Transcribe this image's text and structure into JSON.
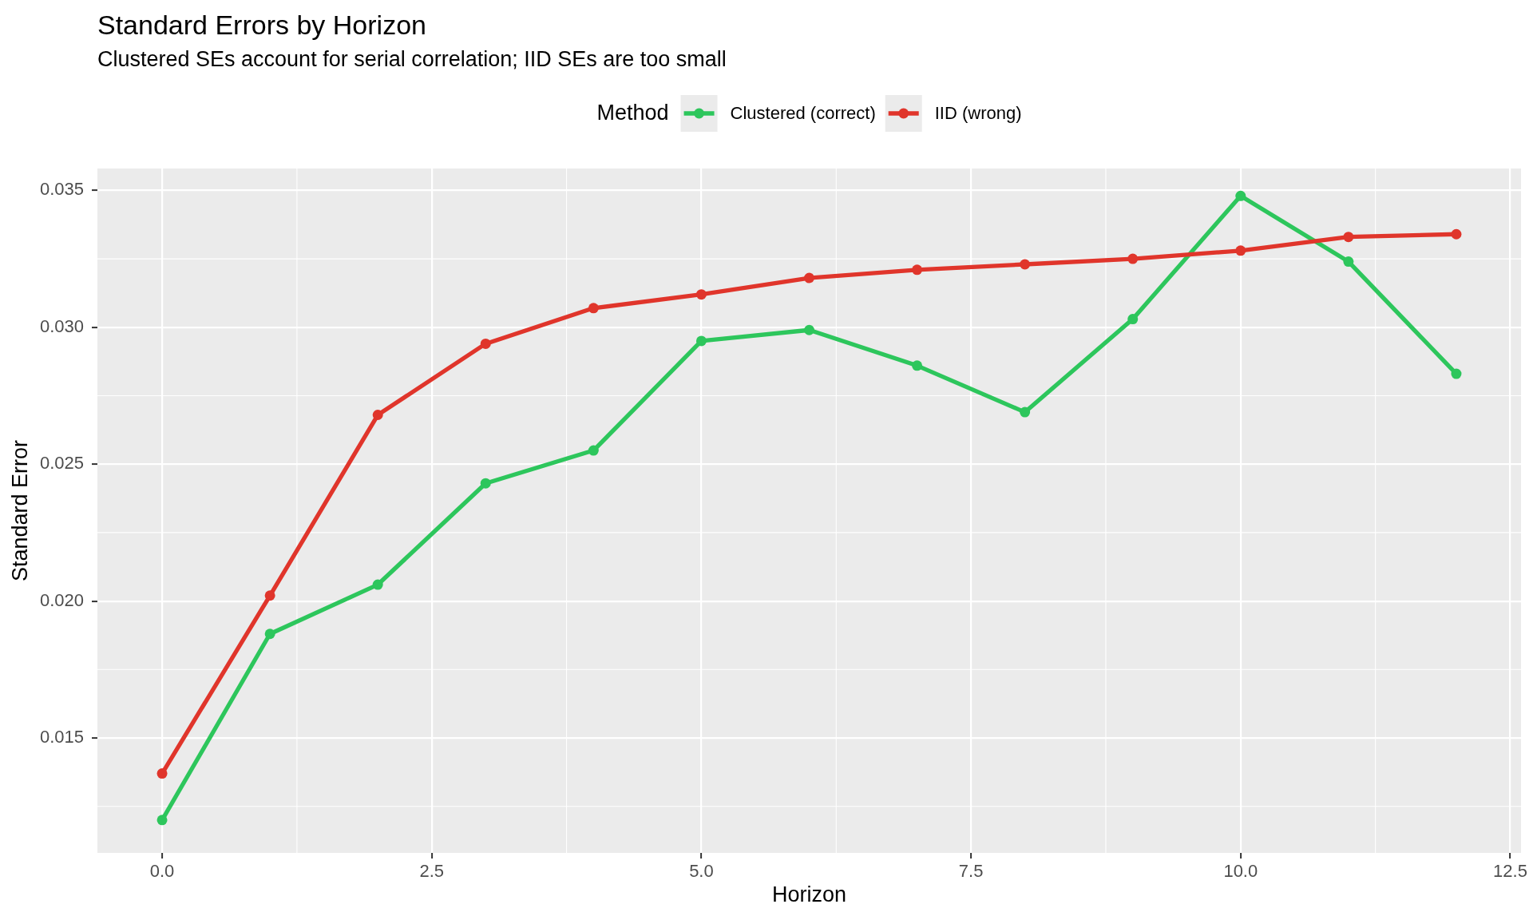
{
  "chart_data": {
    "type": "line",
    "title": "Standard Errors by Horizon",
    "subtitle": "Clustered SEs account for serial correlation; IID SEs are too small",
    "xlabel": "Horizon",
    "ylabel": "Standard Error",
    "legend_title": "Method",
    "x": [
      0,
      1,
      2,
      3,
      4,
      5,
      6,
      7,
      8,
      9,
      10,
      11,
      12
    ],
    "series": [
      {
        "name": "Clustered (correct)",
        "color": "#2dc65c",
        "values": [
          0.012,
          0.0188,
          0.0206,
          0.0243,
          0.0255,
          0.0295,
          0.0299,
          0.0286,
          0.0269,
          0.0303,
          0.0348,
          0.0324,
          0.0283
        ]
      },
      {
        "name": "IID (wrong)",
        "color": "#e0352b",
        "values": [
          0.0137,
          0.0202,
          0.0268,
          0.0294,
          0.0307,
          0.0312,
          0.0318,
          0.0321,
          0.0323,
          0.0325,
          0.0328,
          0.0333,
          0.0334
        ]
      }
    ],
    "xlim": [
      -0.6,
      12.6
    ],
    "xticks": [
      {
        "value": 0,
        "label": "0.0"
      },
      2.5,
      {
        "value": 5,
        "label": "5.0"
      },
      7.5,
      {
        "value": 10,
        "label": "10.0"
      },
      12.5
    ],
    "ylim": [
      0.0108,
      0.0358
    ],
    "yticks": [
      0.015,
      {
        "value": 0.02,
        "label": "0.020"
      },
      0.025,
      {
        "value": 0.03,
        "label": "0.030"
      },
      0.035
    ],
    "grid": true,
    "legend": "top",
    "marker": "circle",
    "line_style": "solid"
  }
}
